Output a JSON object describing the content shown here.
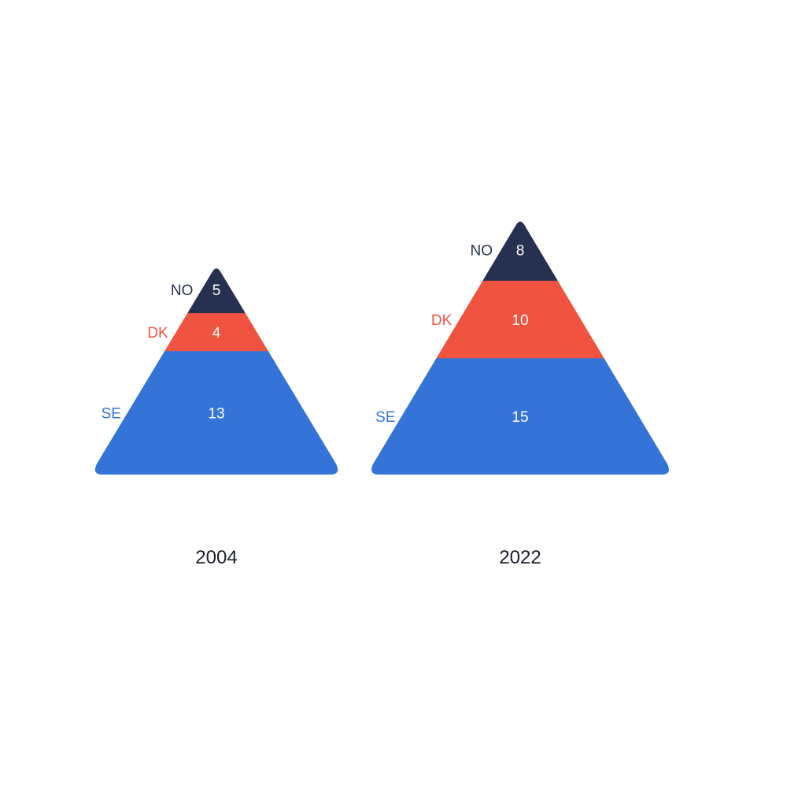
{
  "chart_data": {
    "type": "pyramid",
    "categories": [
      "NO",
      "DK",
      "SE"
    ],
    "colors": {
      "NO": "#263050",
      "DK": "#f05440",
      "SE": "#3474d8"
    },
    "series": [
      {
        "name": "2004",
        "values": {
          "NO": 5,
          "DK": 4,
          "SE": 13
        },
        "labels": {
          "NO": "5",
          "DK": "4",
          "SE": "13"
        }
      },
      {
        "name": "2022",
        "values": {
          "NO": 8,
          "DK": 10,
          "SE": 15
        },
        "labels": {
          "NO": "8",
          "DK": "10",
          "SE": "15"
        }
      }
    ]
  }
}
